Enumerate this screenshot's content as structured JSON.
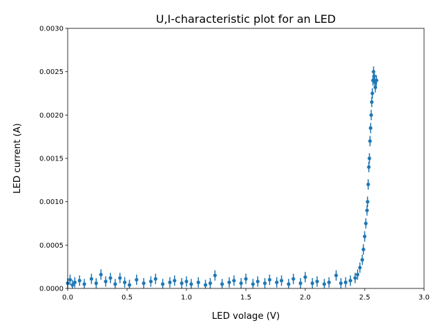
{
  "chart_data": {
    "type": "scatter",
    "title": "U,I-characteristic plot for an LED",
    "xlabel": "LED volage (V)",
    "ylabel": "LED current (A)",
    "xlim": [
      0.0,
      3.0
    ],
    "ylim": [
      0.0,
      0.003
    ],
    "x_ticks": [
      "0.0",
      "0.5",
      "1.0",
      "1.5",
      "2.0",
      "2.5",
      "3.0"
    ],
    "y_ticks": [
      "0.0000",
      "0.0005",
      "0.0010",
      "0.0015",
      "0.0020",
      "0.0025",
      "0.0030"
    ],
    "grid": false,
    "legend": "none",
    "error_bars": true,
    "color": "#1f77b4",
    "series": [
      {
        "x": [
          0.0,
          0.02,
          0.04,
          0.06,
          0.1,
          0.14,
          0.2,
          0.24,
          0.28,
          0.32,
          0.36,
          0.4,
          0.44,
          0.48,
          0.52,
          0.58,
          0.64,
          0.7,
          0.74,
          0.8,
          0.86,
          0.9,
          0.96,
          1.0,
          1.04,
          1.1,
          1.16,
          1.2,
          1.24,
          1.3,
          1.36,
          1.4,
          1.46,
          1.5,
          1.56,
          1.6,
          1.66,
          1.7,
          1.76,
          1.8,
          1.86,
          1.9,
          1.96,
          2.0,
          2.06,
          2.1,
          2.16,
          2.2,
          2.26,
          2.3,
          2.34,
          2.38,
          2.42,
          2.44,
          2.46,
          2.48,
          2.49,
          2.5,
          2.51,
          2.52,
          2.525,
          2.53,
          2.535,
          2.54,
          2.545,
          2.55,
          2.555,
          2.56,
          2.565,
          2.57,
          2.575,
          2.58,
          2.585,
          2.59,
          2.6
        ],
        "y": [
          6e-05,
          0.0001,
          4e-05,
          7e-05,
          9e-05,
          5e-05,
          0.00011,
          6e-05,
          0.00016,
          8e-05,
          0.00012,
          5e-05,
          0.00012,
          7e-05,
          4e-05,
          0.0001,
          6e-05,
          8e-05,
          0.00011,
          5e-05,
          7e-05,
          9e-05,
          6e-05,
          8e-05,
          5e-05,
          7e-05,
          4e-05,
          6e-05,
          0.00015,
          5e-05,
          7e-05,
          9e-05,
          6e-05,
          0.00011,
          5e-05,
          8e-05,
          6e-05,
          0.0001,
          7e-05,
          9e-05,
          5e-05,
          0.00011,
          6e-05,
          0.00013,
          6e-05,
          8e-05,
          5e-05,
          7e-05,
          0.00015,
          6e-05,
          7e-05,
          9e-05,
          0.00012,
          0.00016,
          0.00024,
          0.00033,
          0.00045,
          0.0006,
          0.00075,
          0.0009,
          0.001,
          0.0012,
          0.0014,
          0.0015,
          0.0017,
          0.00185,
          0.002,
          0.00215,
          0.00225,
          0.0024,
          0.0025,
          0.00245,
          0.00238,
          0.00232,
          0.0024
        ],
        "yerr": 6e-05
      }
    ]
  }
}
